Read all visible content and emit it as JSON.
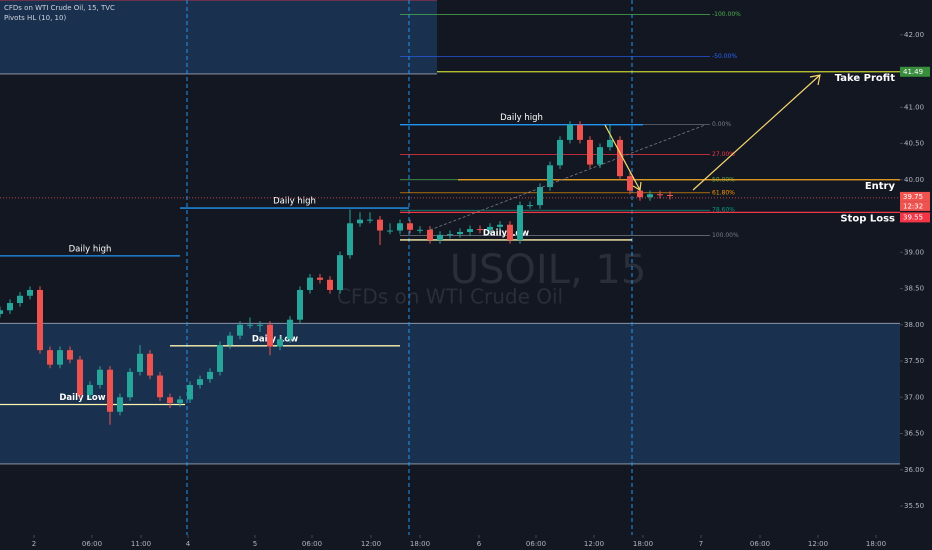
{
  "header": {
    "title": "CFDs on WTI Crude Oil, 15, TVC",
    "indicator": "Pivots HL (10, 10)"
  },
  "watermark": {
    "symbol": "USOIL, 15",
    "description": "CFDs on WTI Crude Oil"
  },
  "chart_data": {
    "type": "candlestick",
    "x": [
      0,
      4,
      8,
      12,
      16,
      20,
      24,
      28,
      32,
      36,
      40,
      44,
      48,
      52,
      56,
      60,
      64,
      68,
      72,
      76,
      80,
      84,
      88,
      92,
      96,
      100,
      104,
      108,
      112,
      116,
      120,
      124,
      128,
      132,
      136,
      140,
      144,
      148,
      152,
      156,
      160,
      164,
      168,
      172,
      176,
      180,
      184,
      188,
      192,
      196,
      200,
      204,
      208,
      212,
      216,
      220,
      224,
      228,
      232,
      236,
      240,
      244,
      248,
      252,
      256,
      260,
      264,
      268
    ],
    "open": [
      38.15,
      38.2,
      38.3,
      38.4,
      38.48,
      37.65,
      37.45,
      37.65,
      37.52,
      37.03,
      37.17,
      37.38,
      36.8,
      37.0,
      37.35,
      37.6,
      37.3,
      37.0,
      36.92,
      36.97,
      37.17,
      37.25,
      37.35,
      37.72,
      37.85,
      38.0,
      38.0,
      38.0,
      37.7,
      37.8,
      38.07,
      38.48,
      38.65,
      38.62,
      38.48,
      38.96,
      39.4,
      39.45,
      39.45,
      39.3,
      39.3,
      39.4,
      39.31,
      39.31,
      39.17,
      39.24,
      39.25,
      39.28,
      39.32,
      39.31,
      39.35,
      39.38,
      39.17,
      39.65,
      39.65,
      39.9,
      40.2,
      40.55,
      40.76,
      40.55,
      40.21,
      40.45,
      40.55,
      40.05,
      39.85,
      39.76,
      39.8,
      39.79
    ],
    "high": [
      38.25,
      38.35,
      38.45,
      38.53,
      38.53,
      37.7,
      37.7,
      37.7,
      37.57,
      37.22,
      37.43,
      37.43,
      37.05,
      37.4,
      37.72,
      37.65,
      37.35,
      37.05,
      37.02,
      37.22,
      37.3,
      37.4,
      37.77,
      37.9,
      38.05,
      38.1,
      38.05,
      38.05,
      37.85,
      38.12,
      38.53,
      38.7,
      38.7,
      38.67,
      39.01,
      39.59,
      39.55,
      39.55,
      39.5,
      39.4,
      39.45,
      39.45,
      39.36,
      39.36,
      39.29,
      39.3,
      39.33,
      39.37,
      39.37,
      39.4,
      39.43,
      39.43,
      39.7,
      39.7,
      39.95,
      40.25,
      40.6,
      40.81,
      40.81,
      40.6,
      40.5,
      40.76,
      40.6,
      40.1,
      39.9,
      39.85,
      39.85,
      39.84
    ],
    "low": [
      38.1,
      38.15,
      38.25,
      38.35,
      37.6,
      37.4,
      37.4,
      37.47,
      36.98,
      36.98,
      37.12,
      36.62,
      36.75,
      36.95,
      37.3,
      37.25,
      36.95,
      36.85,
      36.87,
      36.92,
      37.12,
      37.2,
      37.3,
      37.67,
      37.8,
      37.95,
      37.9,
      37.58,
      37.65,
      37.75,
      38.02,
      38.43,
      38.57,
      38.43,
      38.43,
      38.91,
      39.35,
      39.4,
      39.1,
      39.25,
      39.25,
      39.26,
      39.26,
      39.12,
      39.12,
      39.19,
      39.2,
      39.23,
      39.26,
      39.26,
      39.3,
      39.12,
      39.12,
      39.6,
      39.6,
      39.85,
      40.15,
      40.5,
      40.5,
      40.16,
      40.16,
      40.4,
      40.0,
      39.8,
      39.71,
      39.71,
      39.74,
      39.73
    ],
    "close": [
      38.2,
      38.3,
      38.4,
      38.48,
      37.65,
      37.45,
      37.65,
      37.52,
      37.03,
      37.17,
      37.38,
      36.8,
      37.0,
      37.35,
      37.6,
      37.3,
      37.0,
      36.92,
      36.97,
      37.17,
      37.25,
      37.35,
      37.72,
      37.85,
      38.0,
      38.0,
      38.0,
      37.7,
      37.8,
      38.07,
      38.48,
      38.65,
      38.62,
      38.48,
      38.96,
      39.4,
      39.45,
      39.45,
      39.3,
      39.3,
      39.4,
      39.31,
      39.31,
      39.17,
      39.24,
      39.25,
      39.28,
      39.32,
      39.31,
      39.35,
      39.38,
      39.17,
      39.65,
      39.65,
      39.9,
      40.2,
      40.55,
      40.76,
      40.55,
      40.21,
      40.45,
      40.55,
      40.05,
      39.85,
      39.76,
      39.8,
      39.79,
      39.78
    ],
    "up_color": "#26a69a",
    "down_color": "#ef5350",
    "xlim": [
      0,
      360
    ],
    "xticks": [
      {
        "value": 13.6,
        "label": "2"
      },
      {
        "value": 36.8,
        "label": "06:00"
      },
      {
        "value": 56.4,
        "label": "11:00"
      },
      {
        "value": 75.2,
        "label": "4"
      },
      {
        "value": 102,
        "label": "5"
      },
      {
        "value": 124.8,
        "label": "06:00"
      },
      {
        "value": 148.4,
        "label": "12:00"
      },
      {
        "value": 168,
        "label": "18:00"
      },
      {
        "value": 191.6,
        "label": "6"
      },
      {
        "value": 214.4,
        "label": "06:00"
      },
      {
        "value": 237.6,
        "label": "12:00"
      },
      {
        "value": 257.2,
        "label": "18:00"
      },
      {
        "value": 280.4,
        "label": "7"
      },
      {
        "value": 304,
        "label": "06:00"
      },
      {
        "value": 327.2,
        "label": "12:00"
      },
      {
        "value": 350.4,
        "label": "18:00"
      }
    ],
    "ylim": [
      35.1,
      42.48
    ],
    "yticks": [
      {
        "value": 35.5,
        "label": "35.50"
      },
      {
        "value": 36,
        "label": "36.00"
      },
      {
        "value": 36.5,
        "label": "36.50"
      },
      {
        "value": 37,
        "label": "37.00"
      },
      {
        "value": 37.5,
        "label": "37.50"
      },
      {
        "value": 38,
        "label": "38.00"
      },
      {
        "value": 38.5,
        "label": "38.50"
      },
      {
        "value": 39,
        "label": "39.00"
      },
      {
        "value": 39.5,
        "label": "39.50"
      },
      {
        "value": 40,
        "label": "40.00"
      },
      {
        "value": 40.5,
        "label": "40.50"
      },
      {
        "value": 41,
        "label": "41.00"
      },
      {
        "value": 41.5,
        "label": "41.50"
      },
      {
        "value": 42,
        "label": "42.00"
      }
    ],
    "session_breaks": [
      74.8,
      163.6,
      252.8
    ],
    "zones": [
      {
        "low": 41.46,
        "high": 42.48,
        "x": [
          0,
          174.8
        ]
      },
      {
        "low": 36.08,
        "high": 38.02,
        "x": [
          0,
          360
        ]
      }
    ],
    "daily_levels": [
      {
        "name": "Daily high",
        "value": 38.95,
        "x": [
          0,
          72
        ]
      },
      {
        "name": "Daily high",
        "value": 39.61,
        "x": [
          72,
          163.6
        ]
      },
      {
        "name": "Daily high",
        "value": 40.76,
        "x": [
          160,
          257.2
        ]
      },
      {
        "name": "Daily Low",
        "value": 36.9,
        "x": [
          0,
          74
        ]
      },
      {
        "name": "Daily Low",
        "value": 37.71,
        "x": [
          68,
          160
        ]
      },
      {
        "name": "Daily Low",
        "value": 39.17,
        "x": [
          160,
          252.8
        ]
      }
    ],
    "fib": [
      {
        "level": "-100.00%",
        "price": 42.28,
        "color": "#4caf50"
      },
      {
        "level": "-50.00%",
        "price": 41.7,
        "color": "#2962ff"
      },
      {
        "level": "0.00%",
        "price": 40.76,
        "color": "#787b86"
      },
      {
        "level": "27.00%",
        "price": 40.35,
        "color": "#f23645"
      },
      {
        "level": "50.00%",
        "price": 40.0,
        "color": "#4caf50"
      },
      {
        "level": "61.80%",
        "price": 39.82,
        "color": "#ff9800"
      },
      {
        "level": "78.60%",
        "price": 39.58,
        "color": "#089981"
      },
      {
        "level": "100.00%",
        "price": 39.23,
        "color": "#787b86"
      }
    ],
    "fib_x": [
      160,
      284
    ],
    "trade": [
      {
        "name": "Take Profit",
        "value": 41.49,
        "x": [
          174.8,
          360
        ],
        "color": "#c8d130",
        "tag": true
      },
      {
        "name": "Entry",
        "value": 40.0,
        "x": [
          183.2,
          360
        ],
        "color": "#f5a623",
        "tag": false
      },
      {
        "name": "Stop Loss",
        "value": 39.55,
        "x": [
          160,
          360
        ],
        "color": "#f23645",
        "tag": true
      }
    ],
    "last_price": {
      "value": 39.75,
      "countdown": "12:32"
    }
  }
}
